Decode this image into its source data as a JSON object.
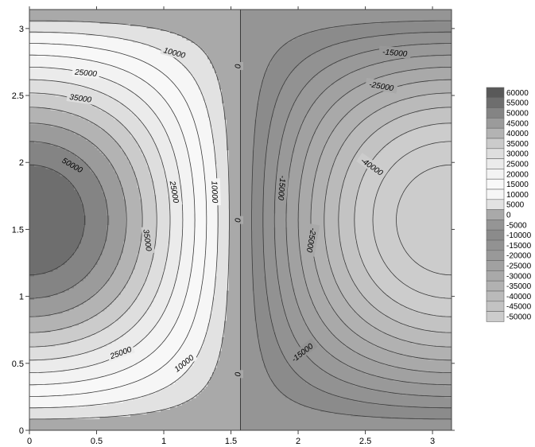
{
  "chart_data": {
    "type": "contour",
    "title": "",
    "xlabel": "",
    "ylabel": "",
    "xlim": [
      0,
      3.1416
    ],
    "ylim": [
      0,
      3.1416
    ],
    "x_ticks": [
      "0",
      "0.5",
      "1",
      "1.5",
      "2",
      "2.5",
      "3"
    ],
    "y_ticks": [
      "0",
      "0.5",
      "1",
      "1.5",
      "2",
      "2.5",
      "3"
    ],
    "field": "f(x,y) = 60000*cos(x)*sin(y)",
    "contour_interval": 5000,
    "contour_labels": [
      {
        "text": "10000",
        "x": 1.08,
        "y": 2.82,
        "angle": 15
      },
      {
        "text": "25000",
        "x": 0.42,
        "y": 2.67,
        "angle": 5
      },
      {
        "text": "35000",
        "x": 0.38,
        "y": 2.48,
        "angle": 8
      },
      {
        "text": "50000",
        "x": 0.32,
        "y": 1.98,
        "angle": 30
      },
      {
        "text": "25000",
        "x": 1.08,
        "y": 1.78,
        "angle": 80
      },
      {
        "text": "10000",
        "x": 1.38,
        "y": 1.78,
        "angle": 88
      },
      {
        "text": "35000",
        "x": 0.88,
        "y": 1.42,
        "angle": 82
      },
      {
        "text": "25000",
        "x": 0.68,
        "y": 0.58,
        "angle": -20
      },
      {
        "text": "10000",
        "x": 1.15,
        "y": 0.5,
        "angle": -38
      },
      {
        "text": "0",
        "x": 1.55,
        "y": 2.72,
        "angle": 90
      },
      {
        "text": "0",
        "x": 1.55,
        "y": 1.57,
        "angle": 90
      },
      {
        "text": "0",
        "x": 1.55,
        "y": 0.42,
        "angle": 90
      },
      {
        "text": "-15000",
        "x": 2.72,
        "y": 2.82,
        "angle": 5
      },
      {
        "text": "-25000",
        "x": 2.62,
        "y": 2.57,
        "angle": 10
      },
      {
        "text": "-40000",
        "x": 2.55,
        "y": 1.97,
        "angle": 35
      },
      {
        "text": "-15000",
        "x": 1.88,
        "y": 1.81,
        "angle": 95
      },
      {
        "text": "-25000",
        "x": 2.1,
        "y": 1.42,
        "angle": 100
      },
      {
        "text": "-15000",
        "x": 2.03,
        "y": 0.58,
        "angle": -38
      }
    ],
    "legend": {
      "placement": "right",
      "levels": [
        "60000",
        "55000",
        "50000",
        "45000",
        "40000",
        "35000",
        "30000",
        "25000",
        "20000",
        "15000",
        "10000",
        "5000",
        "0",
        "-5000",
        "-10000",
        "-15000",
        "-20000",
        "-25000",
        "-30000",
        "-35000",
        "-40000",
        "-45000",
        "-50000"
      ],
      "swatch_colors": [
        "#595959",
        "#6e6e6e",
        "#848484",
        "#9b9b9b",
        "#b3b3b3",
        "#cbcbcb",
        "#dedede",
        "#ebebeb",
        "#f3f3f3",
        "#f8f8f8",
        "#f6f6f6",
        "#e2e2e2",
        "#a9a9a9",
        "#959595",
        "#8b8b8b",
        "#929292",
        "#999999",
        "#a1a1a1",
        "#a9a9a9",
        "#b1b1b1",
        "#bababa",
        "#c3c3c3",
        "#cccccc"
      ]
    }
  }
}
